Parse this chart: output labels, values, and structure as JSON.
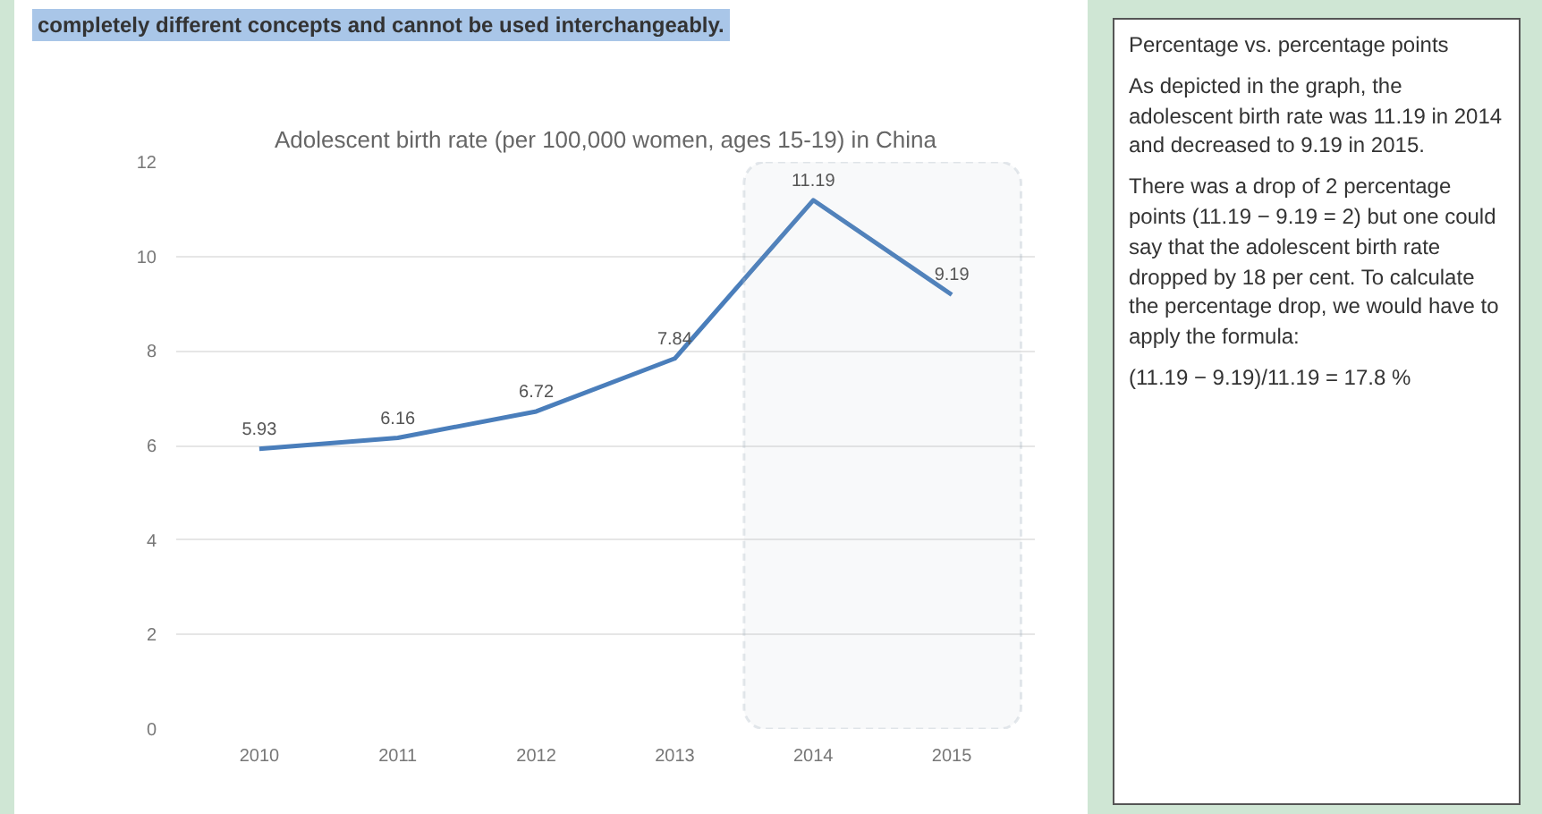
{
  "chart_data": {
    "type": "line",
    "title": "Adolescent birth rate (per 100,000 women, ages 15-19) in China",
    "categories": [
      "2010",
      "2011",
      "2012",
      "2013",
      "2014",
      "2015"
    ],
    "series": [
      {
        "color": "#4a7ebb",
        "values": [
          5.93,
          6.16,
          6.72,
          7.84,
          11.19,
          9.19
        ]
      }
    ],
    "ylim": [
      0,
      12
    ],
    "yticks": [
      0,
      2,
      4,
      6,
      8,
      10,
      12
    ],
    "grid": "y",
    "marker": "none",
    "line_style": "solid",
    "data_labels": true,
    "bands": [
      {
        "axis": "x",
        "from": "2014",
        "to": "2015",
        "color": "#a6b4bf"
      }
    ],
    "annotations": [
      "completely different concepts and cannot be used interchangeably.",
      "Percentage vs. percentage points",
      "As depicted in the graph, the adolescent birth rate was 11.19 in 2014 and decreased to 9.19 in 2015.",
      "There was a drop of 2 percentage points (11.19 − 9.19 = 2) but one could say that the adolescent birth rate dropped by 18 per cent. To calculate the percentage drop, we would have to apply the formula:",
      "(11.19 − 9.19)/11.19 = 17.8 %"
    ]
  }
}
